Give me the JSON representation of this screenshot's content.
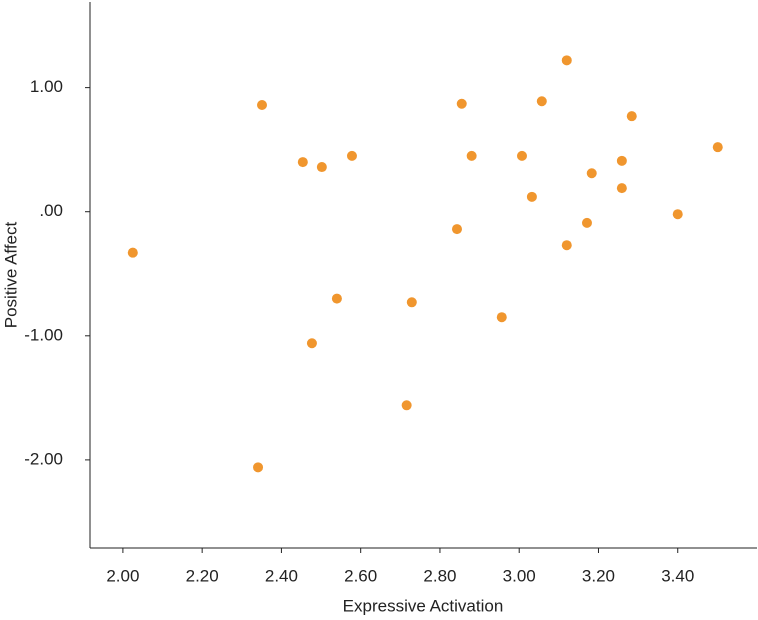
{
  "chart_data": {
    "type": "scatter",
    "x_label": "Expressive Activation",
    "y_label": "Positive Affect",
    "color": "#f0962e",
    "xlim": [
      1.917,
      3.6
    ],
    "ylim": [
      -2.71,
      1.69
    ],
    "xticks": [
      {
        "value": 2.0,
        "label": "2.00"
      },
      {
        "value": 2.2,
        "label": "2.20"
      },
      {
        "value": 2.4,
        "label": "2.40"
      },
      {
        "value": 2.6,
        "label": "2.60"
      },
      {
        "value": 2.8,
        "label": "2.80"
      },
      {
        "value": 3.0,
        "label": "3.00"
      },
      {
        "value": 3.2,
        "label": "3.20"
      },
      {
        "value": 3.4,
        "label": "3.40"
      }
    ],
    "yticks": [
      {
        "value": -2,
        "label": "-2.00"
      },
      {
        "value": -1,
        "label": "-1.00"
      },
      {
        "value": 0,
        "label": ".00"
      },
      {
        "value": 1,
        "label": "1.00"
      }
    ],
    "x": [
      2.025,
      2.351,
      2.341,
      2.454,
      2.502,
      2.477,
      2.54,
      2.578,
      2.716,
      2.729,
      2.843,
      2.855,
      2.88,
      2.956,
      3.007,
      3.032,
      3.057,
      3.12,
      3.12,
      3.171,
      3.183,
      3.259,
      3.259,
      3.284,
      3.4,
      3.501
    ],
    "values": [
      -0.33,
      0.86,
      -2.06,
      0.4,
      0.36,
      -1.06,
      -0.7,
      0.45,
      -1.56,
      -0.73,
      -0.14,
      0.87,
      0.45,
      -0.85,
      0.45,
      0.12,
      0.89,
      1.22,
      -0.27,
      -0.09,
      0.31,
      0.41,
      0.19,
      0.77,
      -0.02,
      0.52
    ]
  }
}
